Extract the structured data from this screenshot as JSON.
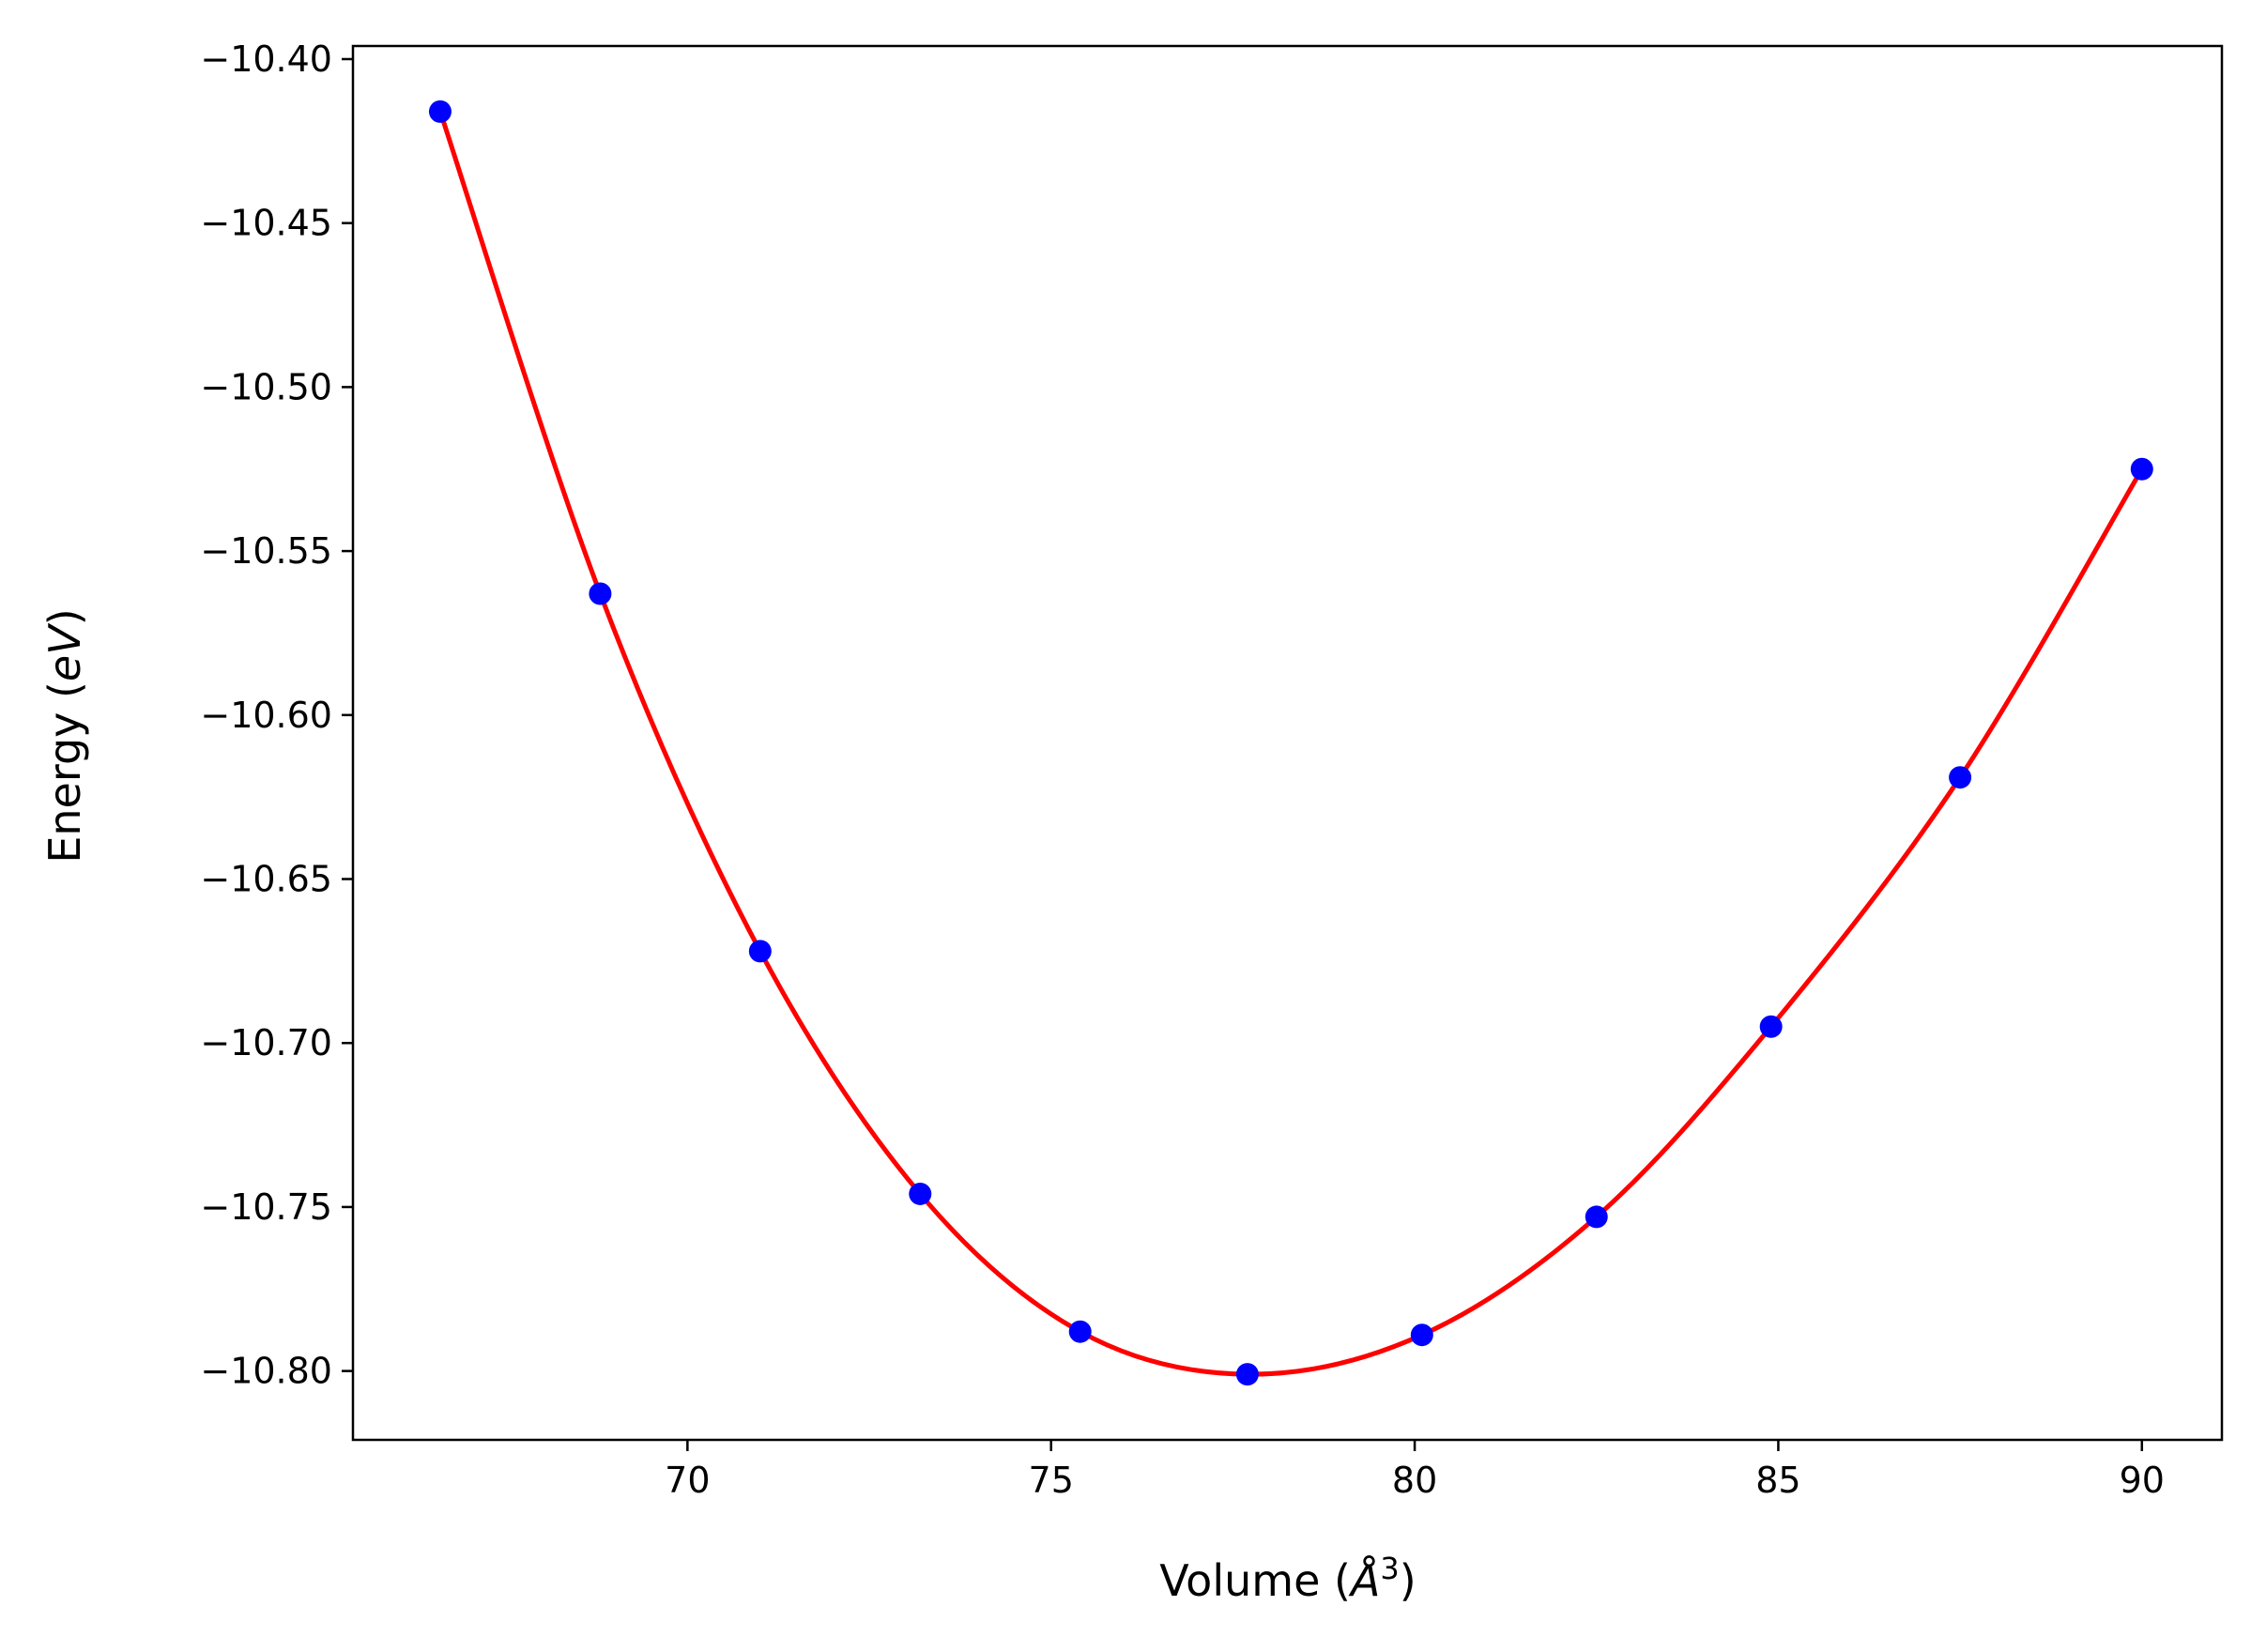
{
  "chart_data": {
    "type": "scatter",
    "title": "",
    "xlabel": "Volume (Å^3)",
    "xlabel_parts": {
      "prefix": "Volume (",
      "unit": "Å",
      "exponent": "3",
      "suffix": ")"
    },
    "ylabel": "Energy (eV)",
    "ylabel_parts": {
      "prefix": "Energy (",
      "unit": "eV",
      "suffix": ")"
    },
    "xlim": [
      65.4,
      91.1
    ],
    "ylim": [
      -10.821,
      -10.396
    ],
    "xticks": [
      70,
      75,
      80,
      85,
      90
    ],
    "xtick_labels": [
      "70",
      "75",
      "80",
      "85",
      "90"
    ],
    "yticks": [
      -10.4,
      -10.45,
      -10.5,
      -10.55,
      -10.6,
      -10.65,
      -10.7,
      -10.75,
      -10.8
    ],
    "ytick_labels": [
      "−10.40",
      "−10.45",
      "−10.50",
      "−10.55",
      "−10.60",
      "−10.65",
      "−10.70",
      "−10.75",
      "−10.80"
    ],
    "grid": false,
    "legend": null,
    "series": [
      {
        "kind": "markers",
        "color": "#0000ff",
        "x": [
          66.6,
          68.8,
          71.0,
          73.2,
          75.4,
          77.7,
          80.1,
          82.5,
          84.9,
          87.5,
          90.0
        ],
        "y": [
          -10.416,
          -10.563,
          -10.672,
          -10.746,
          -10.788,
          -10.801,
          -10.789,
          -10.753,
          -10.695,
          -10.619,
          -10.525
        ]
      },
      {
        "kind": "fit-curve",
        "color": "#ff0000",
        "x": [
          66.6,
          68.8,
          71.0,
          73.2,
          75.4,
          77.7,
          80.1,
          82.5,
          84.9,
          87.5,
          90.0
        ],
        "y": [
          -10.416,
          -10.563,
          -10.672,
          -10.746,
          -10.788,
          -10.801,
          -10.789,
          -10.753,
          -10.695,
          -10.619,
          -10.525
        ]
      }
    ]
  }
}
